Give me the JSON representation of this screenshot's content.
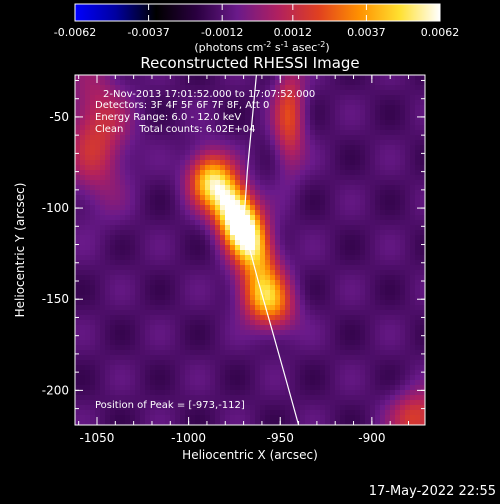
{
  "colorbar": {
    "min": -0.0062,
    "max": 0.0062,
    "tick_labels": [
      "-0.0062",
      "-0.0037",
      "-0.0012",
      "0.0012",
      "0.0037",
      "0.0062"
    ],
    "tick_values": [
      -0.0062,
      -0.0037,
      -0.0012,
      0.0012,
      0.0037,
      0.0062
    ],
    "unit_parts": [
      "(photons cm",
      "-2",
      " s",
      "-1",
      " asec",
      "-2",
      ")"
    ],
    "colormap": [
      "#0000ff",
      "#0000a0",
      "#000000",
      "#2a0040",
      "#6a1a8a",
      "#b02060",
      "#e04020",
      "#ff9000",
      "#ffe030",
      "#ffffff"
    ]
  },
  "chart_data": {
    "type": "heatmap",
    "title": "Reconstructed RHESSI Image",
    "xlabel": "Heliocentric X (arcsec)",
    "ylabel": "Heliocentric Y (arcsec)",
    "xlim": [
      -1062,
      -871
    ],
    "ylim": [
      -219,
      -27
    ],
    "x_tick_labels": [
      "-1050",
      "-1000",
      "-950",
      "-900"
    ],
    "x_tick_values": [
      -1050,
      -1000,
      -950,
      -900
    ],
    "y_tick_labels": [
      "-50",
      "-100",
      "-150",
      "-200"
    ],
    "y_tick_values": [
      -50,
      -100,
      -150,
      -200
    ],
    "sources": [
      {
        "x": -972,
        "y": -108,
        "sx": 8,
        "sy": 20,
        "tilt": -25,
        "amp": 1.0
      },
      {
        "x": -958,
        "y": -150,
        "sx": 9,
        "sy": 12,
        "tilt": -30,
        "amp": 0.55
      },
      {
        "x": -990,
        "y": -85,
        "sx": 8,
        "sy": 10,
        "tilt": 0,
        "amp": 0.4
      },
      {
        "x": -1050,
        "y": -60,
        "sx": 12,
        "sy": 25,
        "tilt": 0,
        "amp": 0.3
      },
      {
        "x": -945,
        "y": -50,
        "sx": 6,
        "sy": 20,
        "tilt": 0,
        "amp": 0.35
      },
      {
        "x": -875,
        "y": -215,
        "sx": 10,
        "sy": 10,
        "tilt": 0,
        "amp": 0.35
      }
    ],
    "limb": [
      [
        -963,
        -27
      ],
      [
        -968,
        -80
      ],
      [
        -970,
        -110
      ],
      [
        -962,
        -140
      ],
      [
        -955,
        -165
      ],
      [
        -948,
        -190
      ],
      [
        -940,
        -219
      ]
    ],
    "annotations": [
      "2-Nov-2013 17:01:52.000 to 17:07:52.000",
      "Detectors: 3F 4F 5F 6F 7F 8F, Att 0",
      "Energy Range: 6.0 - 12.0 keV",
      "Clean     Total counts: 6.02E+04"
    ],
    "peak_label": "Position of Peak = [-973,-112]"
  },
  "footer": {
    "timestamp": "17-May-2022 22:55"
  }
}
